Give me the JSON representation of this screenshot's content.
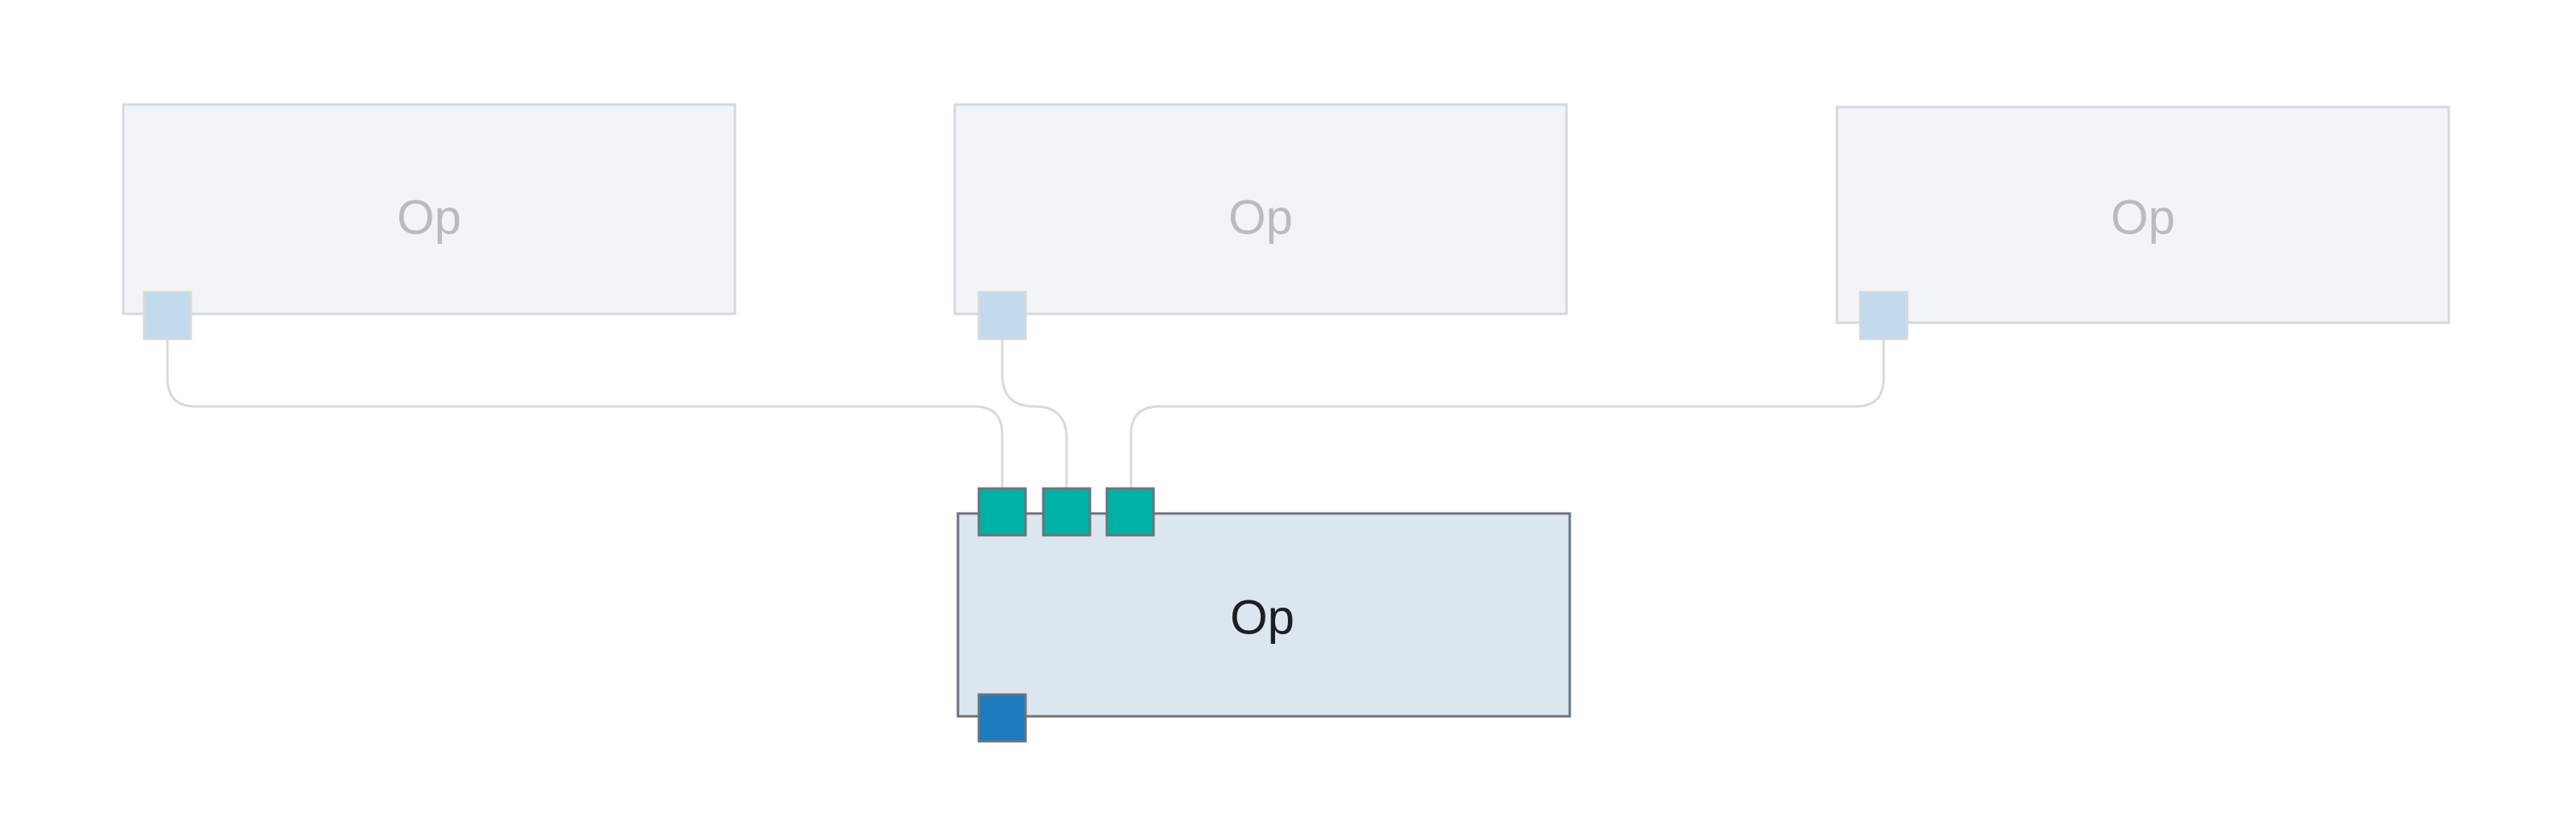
{
  "colors": {
    "faded_node_fill": "#f2f5f8",
    "faded_node_stroke": "#d6d8dc",
    "faded_port_fill": "#c2dbec",
    "faded_port_stroke": "#d6d8dc",
    "active_node_fill": "#dce6ef",
    "active_node_stroke": "#6c737b",
    "input_port_fill": "#00b2a6",
    "output_port_fill": "#1b7bbd",
    "edge_stroke": "#d8dadd"
  },
  "nodes": {
    "upstream_1": {
      "label": "Op"
    },
    "upstream_2": {
      "label": "Op"
    },
    "upstream_3": {
      "label": "Op"
    },
    "selected": {
      "label": "Op"
    }
  }
}
